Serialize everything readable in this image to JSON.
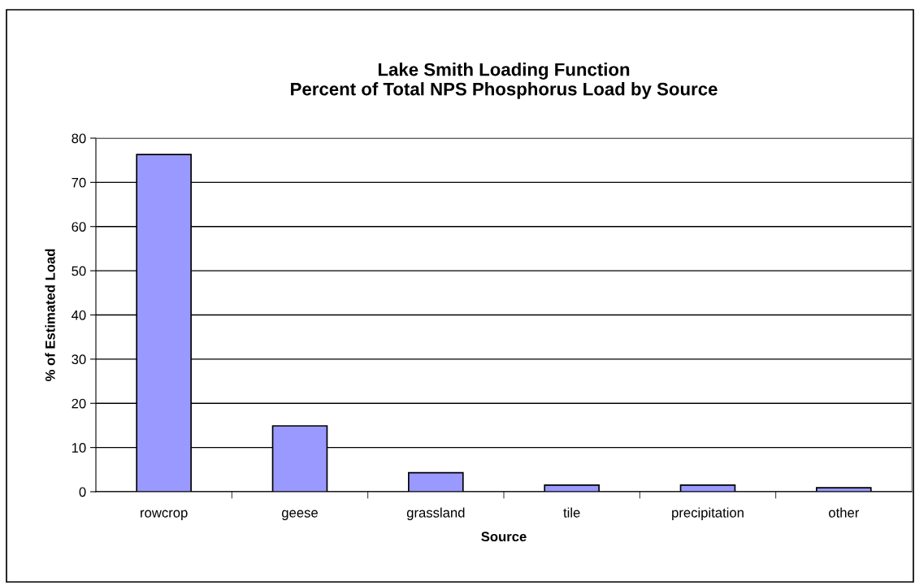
{
  "chart_data": {
    "type": "bar",
    "title": "Lake Smith Loading Function\nPercent of Total NPS Phosphorus Load by Source",
    "xlabel": "Source",
    "ylabel": "% of Estimated Load",
    "categories": [
      "rowcrop",
      "geese",
      "grassland",
      "tile",
      "precipitation",
      "other"
    ],
    "values": [
      76.3,
      14.9,
      4.3,
      1.5,
      1.5,
      0.9
    ],
    "color": "#9999ff",
    "ylim": [
      0,
      80
    ],
    "yticks": [
      0,
      10,
      20,
      30,
      40,
      50,
      60,
      70,
      80
    ],
    "grid": "y",
    "legend": false
  }
}
